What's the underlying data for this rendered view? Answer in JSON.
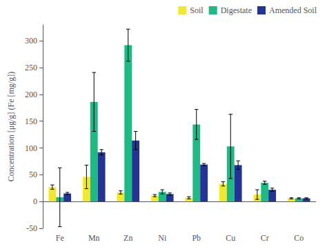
{
  "chart_data": {
    "type": "bar",
    "ylabel": "Concentration [μg/g] (Fe [mg/g])",
    "categories": [
      "Fe",
      "Mn",
      "Zn",
      "Ni",
      "Pb",
      "Cu",
      "Cr",
      "Co"
    ],
    "series": [
      {
        "name": "Soil",
        "color": "#f2e731",
        "values": [
          27,
          46,
          17,
          11,
          7,
          33,
          13,
          6
        ],
        "errors": [
          4,
          22,
          3,
          2,
          2,
          4,
          9,
          1
        ]
      },
      {
        "name": "Digestate",
        "color": "#1fba84",
        "values": [
          8,
          186,
          292,
          18,
          144,
          103,
          35,
          6
        ],
        "errors": [
          55,
          55,
          30,
          4,
          28,
          60,
          3,
          1
        ]
      },
      {
        "name": "Amended Soil",
        "color": "#253494",
        "values": [
          15,
          92,
          114,
          14,
          69,
          68,
          22,
          6
        ],
        "errors": [
          2,
          5,
          17,
          2,
          2,
          8,
          3,
          1
        ]
      }
    ],
    "ylim": [
      -50,
      330
    ],
    "yticks": [
      -50,
      0,
      50,
      100,
      150,
      200,
      250,
      300
    ],
    "grid": false,
    "legend": "upper right"
  }
}
